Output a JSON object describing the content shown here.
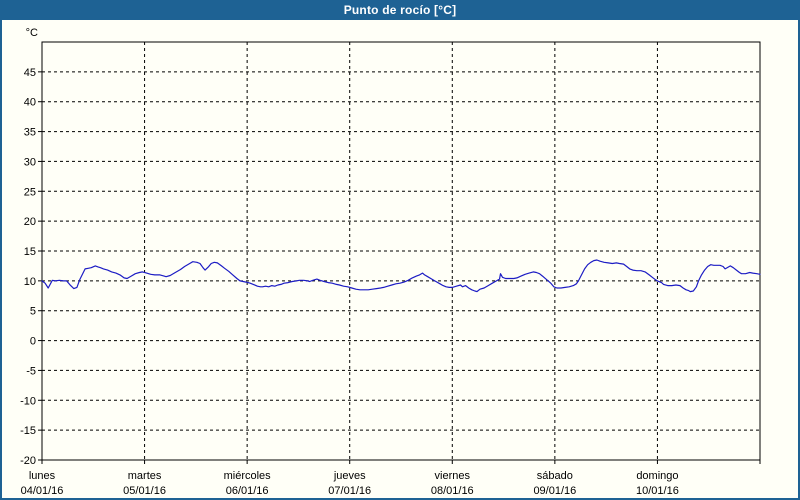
{
  "window": {
    "title": "Punto de rocío [°C]",
    "titlebar_color": "#1e6294",
    "border_color": "#1e6294",
    "background_color": "#fffff7"
  },
  "chart_data": {
    "type": "line",
    "title": "Punto de rocío [°C]",
    "ylabel": "°C",
    "unit_label": "°C",
    "xlabel": "",
    "ylim": [
      -20,
      50
    ],
    "xlim_days": [
      0,
      7
    ],
    "grid": "dashed",
    "grid_color": "#000000",
    "axis_color": "#000000",
    "line_color": "#1c1cc4",
    "yticks": [
      45,
      40,
      35,
      30,
      25,
      20,
      15,
      10,
      5,
      0,
      -5,
      -10,
      -15,
      -20
    ],
    "day_ticks": [
      {
        "day": "lunes",
        "date": "04/01/16"
      },
      {
        "day": "martes",
        "date": "05/01/16"
      },
      {
        "day": "miércoles",
        "date": "06/01/16"
      },
      {
        "day": "jueves",
        "date": "07/01/16"
      },
      {
        "day": "viernes",
        "date": "08/01/16"
      },
      {
        "day": "sábado",
        "date": "09/01/16"
      },
      {
        "day": "domingo",
        "date": "10/01/16"
      }
    ],
    "series": [
      {
        "name": "Punto de rocío",
        "color": "#1c1cc4",
        "points": [
          [
            0,
            10
          ],
          [
            0.03,
            9.6
          ],
          [
            0.06,
            8.8
          ],
          [
            0.1,
            10.1
          ],
          [
            0.13,
            10
          ],
          [
            0.17,
            10.1
          ],
          [
            0.21,
            10
          ],
          [
            0.24,
            10
          ],
          [
            0.28,
            9.2
          ],
          [
            0.31,
            8.7
          ],
          [
            0.34,
            8.9
          ],
          [
            0.37,
            10.3
          ],
          [
            0.4,
            11.3
          ],
          [
            0.42,
            12
          ],
          [
            0.45,
            12.1
          ],
          [
            0.48,
            12.2
          ],
          [
            0.52,
            12.5
          ],
          [
            0.55,
            12.3
          ],
          [
            0.57,
            12.2
          ],
          [
            0.6,
            12
          ],
          [
            0.64,
            11.8
          ],
          [
            0.68,
            11.5
          ],
          [
            0.72,
            11.3
          ],
          [
            0.76,
            11
          ],
          [
            0.8,
            10.5
          ],
          [
            0.83,
            10.4
          ],
          [
            0.87,
            10.8
          ],
          [
            0.91,
            11.2
          ],
          [
            0.95,
            11.4
          ],
          [
            0.98,
            11.5
          ],
          [
            1.02,
            11.3
          ],
          [
            1.06,
            11.1
          ],
          [
            1.1,
            11
          ],
          [
            1.15,
            11
          ],
          [
            1.19,
            10.8
          ],
          [
            1.21,
            10.7
          ],
          [
            1.25,
            10.9
          ],
          [
            1.3,
            11.4
          ],
          [
            1.35,
            11.9
          ],
          [
            1.39,
            12.4
          ],
          [
            1.44,
            12.9
          ],
          [
            1.47,
            13.2
          ],
          [
            1.51,
            13.1
          ],
          [
            1.54,
            12.9
          ],
          [
            1.57,
            12.2
          ],
          [
            1.59,
            11.8
          ],
          [
            1.62,
            12.3
          ],
          [
            1.65,
            12.9
          ],
          [
            1.68,
            13.1
          ],
          [
            1.71,
            13
          ],
          [
            1.75,
            12.5
          ],
          [
            1.78,
            12.1
          ],
          [
            1.82,
            11.6
          ],
          [
            1.86,
            11
          ],
          [
            1.9,
            10.4
          ],
          [
            1.93,
            10
          ],
          [
            1.96,
            9.9
          ],
          [
            1.99,
            9.8
          ],
          [
            2.03,
            9.6
          ],
          [
            2.06,
            9.4
          ],
          [
            2.1,
            9.1
          ],
          [
            2.13,
            9
          ],
          [
            2.15,
            9
          ],
          [
            2.18,
            9.1
          ],
          [
            2.21,
            9
          ],
          [
            2.24,
            9.2
          ],
          [
            2.27,
            9.1
          ],
          [
            2.3,
            9.3
          ],
          [
            2.33,
            9.4
          ],
          [
            2.36,
            9.6
          ],
          [
            2.4,
            9.7
          ],
          [
            2.44,
            9.9
          ],
          [
            2.48,
            10
          ],
          [
            2.51,
            10.1
          ],
          [
            2.55,
            10.1
          ],
          [
            2.59,
            10
          ],
          [
            2.61,
            9.9
          ],
          [
            2.64,
            10.1
          ],
          [
            2.68,
            10.3
          ],
          [
            2.71,
            10.1
          ],
          [
            2.75,
            9.9
          ],
          [
            2.79,
            9.7
          ],
          [
            2.83,
            9.6
          ],
          [
            2.87,
            9.4
          ],
          [
            2.9,
            9.3
          ],
          [
            2.94,
            9.1
          ],
          [
            2.98,
            9
          ],
          [
            3.02,
            8.8
          ],
          [
            3.06,
            8.6
          ],
          [
            3.1,
            8.5
          ],
          [
            3.14,
            8.5
          ],
          [
            3.18,
            8.5
          ],
          [
            3.22,
            8.6
          ],
          [
            3.26,
            8.7
          ],
          [
            3.3,
            8.8
          ],
          [
            3.33,
            8.9
          ],
          [
            3.37,
            9.1
          ],
          [
            3.41,
            9.3
          ],
          [
            3.45,
            9.5
          ],
          [
            3.49,
            9.6
          ],
          [
            3.53,
            9.8
          ],
          [
            3.57,
            10.1
          ],
          [
            3.61,
            10.5
          ],
          [
            3.65,
            10.8
          ],
          [
            3.68,
            11
          ],
          [
            3.71,
            11.3
          ],
          [
            3.73,
            11
          ],
          [
            3.76,
            10.7
          ],
          [
            3.8,
            10.3
          ],
          [
            3.84,
            9.9
          ],
          [
            3.88,
            9.5
          ],
          [
            3.91,
            9.2
          ],
          [
            3.94,
            9
          ],
          [
            3.97,
            8.9
          ],
          [
            4,
            8.9
          ],
          [
            4.04,
            9.1
          ],
          [
            4.08,
            9.3
          ],
          [
            4.1,
            9
          ],
          [
            4.13,
            9.2
          ],
          [
            4.16,
            8.8
          ],
          [
            4.19,
            8.5
          ],
          [
            4.22,
            8.3
          ],
          [
            4.24,
            8.2
          ],
          [
            4.27,
            8.6
          ],
          [
            4.31,
            8.8
          ],
          [
            4.35,
            9.2
          ],
          [
            4.39,
            9.6
          ],
          [
            4.43,
            10
          ],
          [
            4.46,
            10.3
          ],
          [
            4.47,
            11.2
          ],
          [
            4.49,
            10.6
          ],
          [
            4.52,
            10.4
          ],
          [
            4.56,
            10.4
          ],
          [
            4.6,
            10.4
          ],
          [
            4.63,
            10.5
          ],
          [
            4.67,
            10.8
          ],
          [
            4.71,
            11.1
          ],
          [
            4.75,
            11.3
          ],
          [
            4.79,
            11.5
          ],
          [
            4.82,
            11.4
          ],
          [
            4.85,
            11.2
          ],
          [
            4.88,
            10.8
          ],
          [
            4.92,
            10.2
          ],
          [
            4.96,
            9.6
          ],
          [
            4.99,
            9
          ],
          [
            5.02,
            8.8
          ],
          [
            5.06,
            8.8
          ],
          [
            5.1,
            8.9
          ],
          [
            5.14,
            9
          ],
          [
            5.18,
            9.2
          ],
          [
            5.21,
            9.5
          ],
          [
            5.23,
            10
          ],
          [
            5.26,
            11
          ],
          [
            5.29,
            12
          ],
          [
            5.32,
            12.7
          ],
          [
            5.35,
            13.1
          ],
          [
            5.38,
            13.4
          ],
          [
            5.41,
            13.5
          ],
          [
            5.44,
            13.3
          ],
          [
            5.48,
            13.1
          ],
          [
            5.52,
            13
          ],
          [
            5.56,
            12.9
          ],
          [
            5.6,
            13
          ],
          [
            5.63,
            12.9
          ],
          [
            5.67,
            12.8
          ],
          [
            5.7,
            12.4
          ],
          [
            5.73,
            12
          ],
          [
            5.76,
            11.8
          ],
          [
            5.8,
            11.7
          ],
          [
            5.84,
            11.7
          ],
          [
            5.88,
            11.5
          ],
          [
            5.92,
            11
          ],
          [
            5.95,
            10.6
          ],
          [
            5.98,
            10.2
          ],
          [
            6,
            10
          ],
          [
            6.04,
            9.7
          ],
          [
            6.06,
            9.4
          ],
          [
            6.1,
            9.2
          ],
          [
            6.14,
            9.2
          ],
          [
            6.18,
            9.3
          ],
          [
            6.22,
            9.2
          ],
          [
            6.25,
            8.8
          ],
          [
            6.28,
            8.5
          ],
          [
            6.3,
            8.4
          ],
          [
            6.32,
            8.2
          ],
          [
            6.35,
            8.3
          ],
          [
            6.38,
            9
          ],
          [
            6.4,
            10
          ],
          [
            6.43,
            11
          ],
          [
            6.46,
            11.8
          ],
          [
            6.49,
            12.4
          ],
          [
            6.52,
            12.7
          ],
          [
            6.55,
            12.6
          ],
          [
            6.58,
            12.6
          ],
          [
            6.61,
            12.6
          ],
          [
            6.64,
            12.4
          ],
          [
            6.66,
            12
          ],
          [
            6.69,
            12.3
          ],
          [
            6.71,
            12.5
          ],
          [
            6.74,
            12.2
          ],
          [
            6.77,
            11.8
          ],
          [
            6.8,
            11.4
          ],
          [
            6.82,
            11.2
          ],
          [
            6.86,
            11.2
          ],
          [
            6.9,
            11.4
          ],
          [
            6.93,
            11.3
          ],
          [
            6.97,
            11.2
          ],
          [
            7,
            11.1
          ]
        ]
      }
    ]
  }
}
